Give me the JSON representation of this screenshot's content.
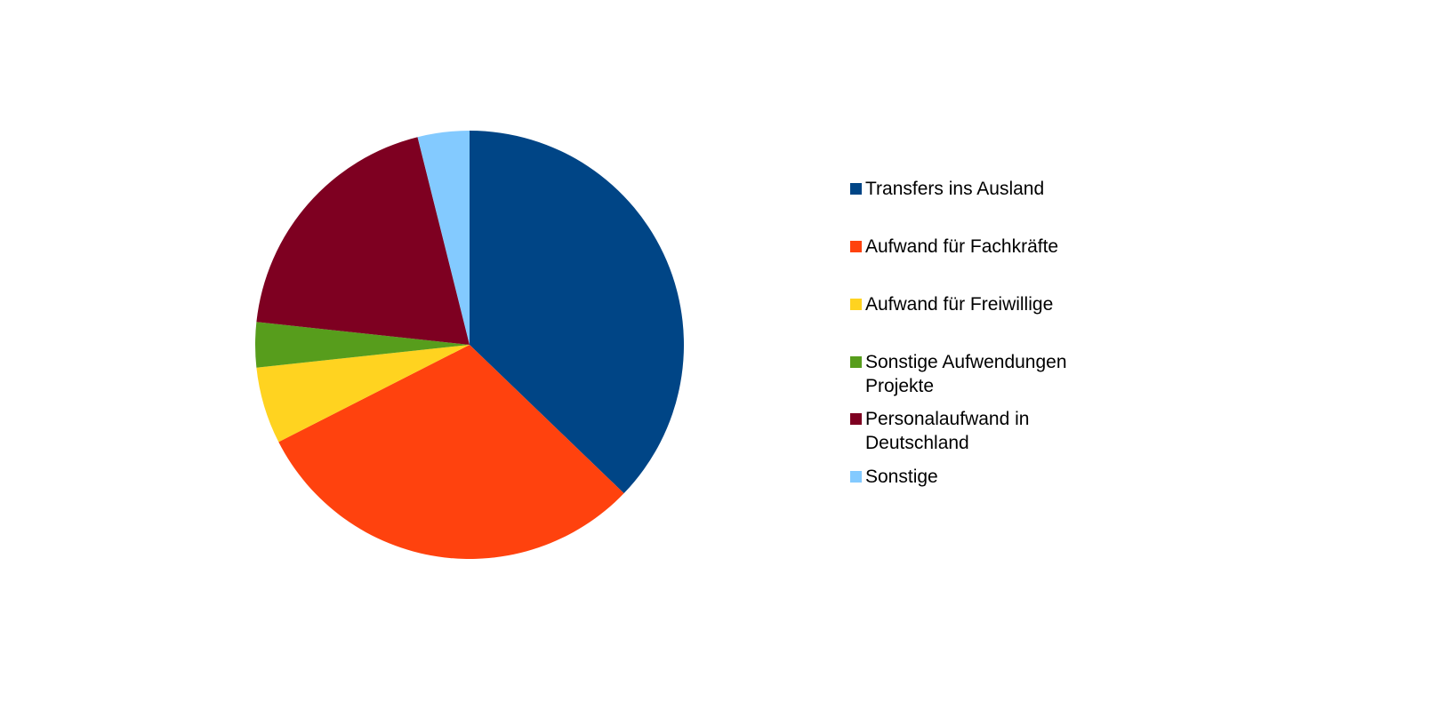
{
  "chart_data": {
    "type": "pie",
    "categories": [
      "Transfers ins Ausland",
      "Aufwand für Fachkräfte",
      "Aufwand für Freiwillige",
      "Sonstige Aufwendungen Projekte",
      "Personalaufwand in Deutschland",
      "Sonstige"
    ],
    "values": [
      37.2,
      30.3,
      5.8,
      3.4,
      19.4,
      3.9
    ],
    "colors": [
      "#004586",
      "#ff420e",
      "#ffd320",
      "#579d1c",
      "#7e0021",
      "#83caff"
    ],
    "legend": "right"
  }
}
